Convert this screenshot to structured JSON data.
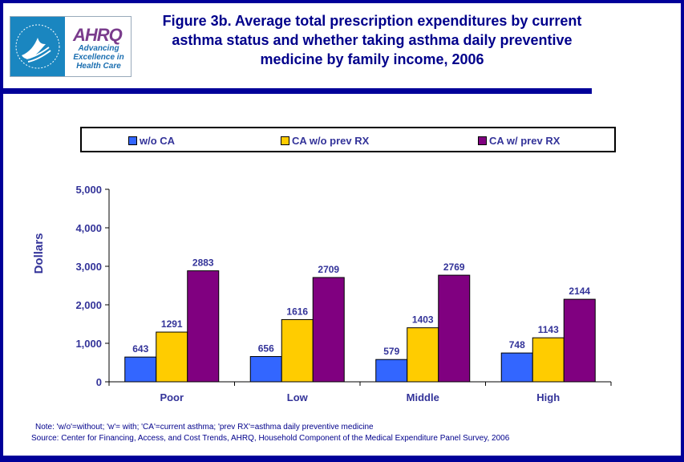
{
  "header": {
    "logo": {
      "left_icon": "hhs-eagle-icon",
      "brand": "AHRQ",
      "tagline": [
        "Advancing",
        "Excellence in",
        "Health Care"
      ]
    },
    "title": "Figure 3b. Average total prescription expenditures by current asthma status and whether taking asthma daily preventive medicine by family income, 2006"
  },
  "chart_data": {
    "type": "bar",
    "title": "Figure 3b. Average total prescription expenditures by current asthma status and whether taking asthma daily preventive medicine by family income, 2006",
    "xlabel": "",
    "ylabel": "Dollars",
    "ylim": [
      0,
      5000
    ],
    "yticks": [
      0,
      1000,
      2000,
      3000,
      4000,
      5000
    ],
    "ytick_labels": [
      "0",
      "1,000",
      "2,000",
      "3,000",
      "4,000",
      "5,000"
    ],
    "categories": [
      "Poor",
      "Low",
      "Middle",
      "High"
    ],
    "series": [
      {
        "name": "w/o CA",
        "color": "#3366ff",
        "values": [
          643,
          656,
          579,
          748
        ]
      },
      {
        "name": "CA w/o prev RX",
        "color": "#ffcc00",
        "values": [
          1291,
          1616,
          1403,
          1143
        ]
      },
      {
        "name": "CA w/ prev RX",
        "color": "#800080",
        "values": [
          2883,
          2709,
          2769,
          2144
        ]
      }
    ],
    "legend_position": "top",
    "grid": false,
    "data_labels": true
  },
  "footer": {
    "note": "Note: 'w/o'=without; 'w'= with; 'CA'=current asthma; 'prev RX'=asthma daily preventive medicine",
    "source": "Source: Center for Financing, Access, and Cost Trends, AHRQ, Household Component of the Medical Expenditure Panel Survey, 2006"
  }
}
